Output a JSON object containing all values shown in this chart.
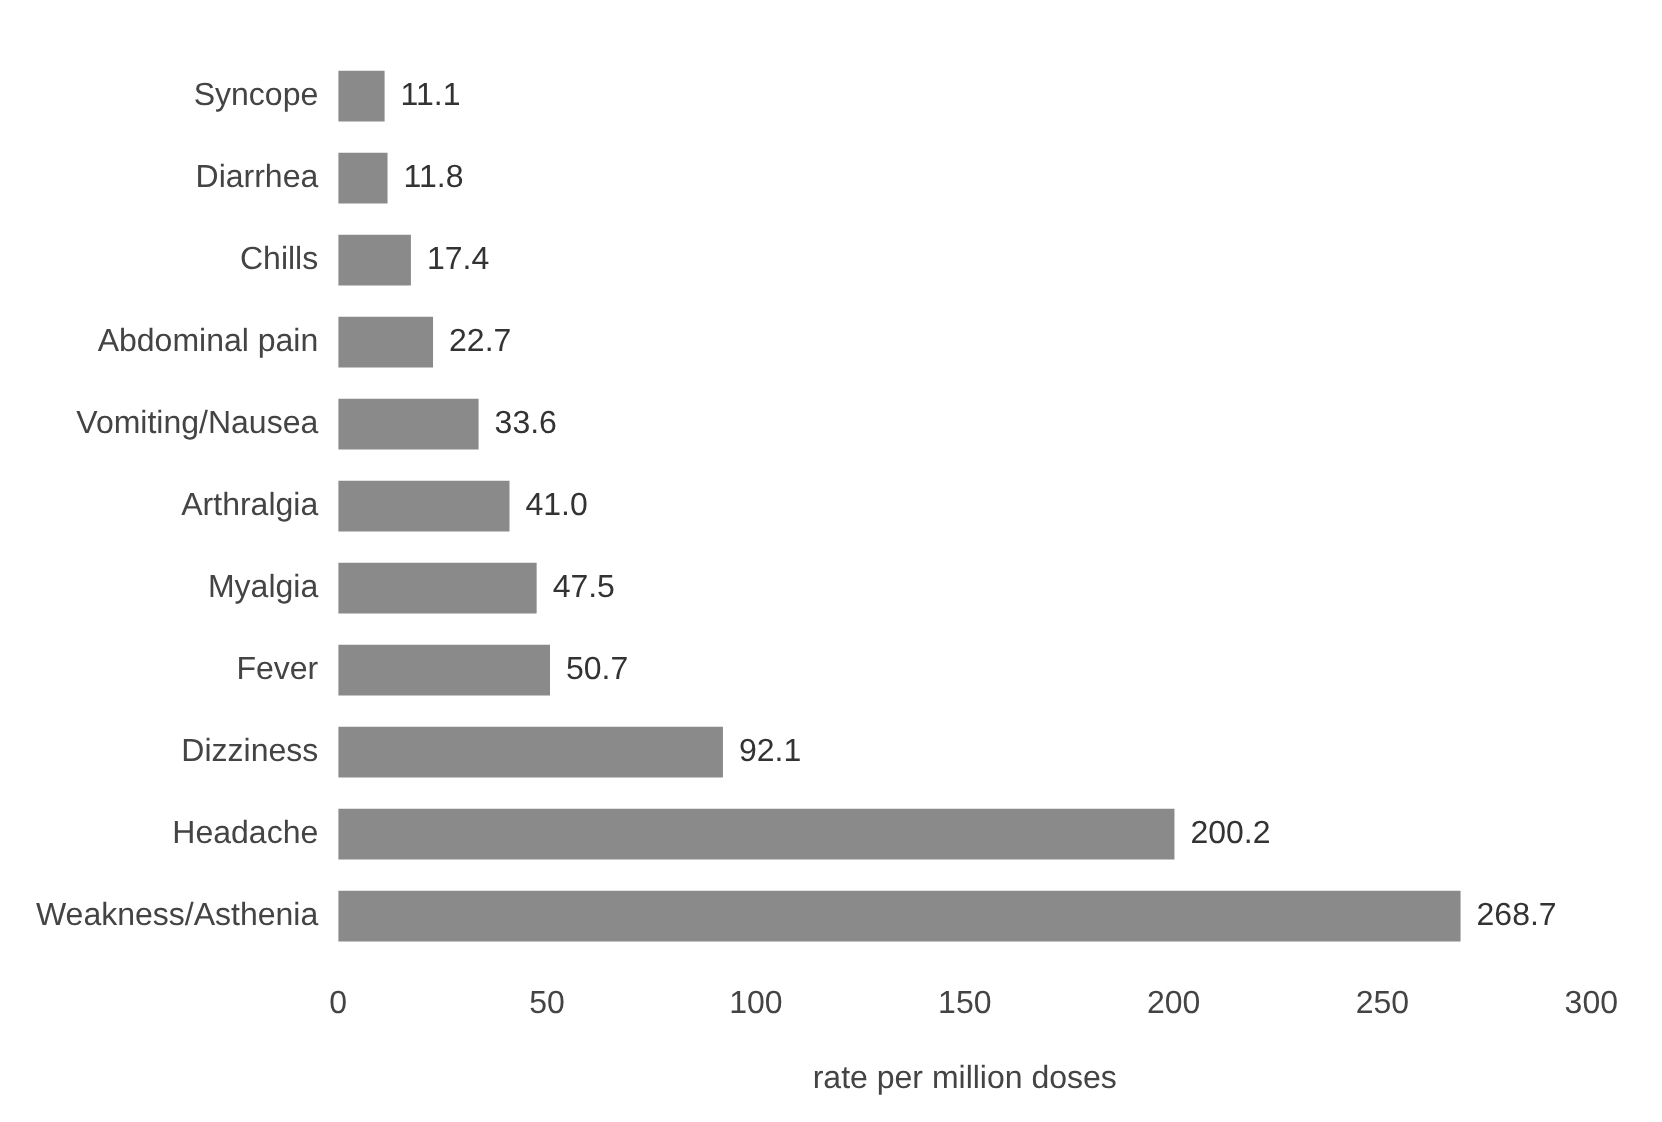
{
  "chart_data": {
    "type": "bar",
    "orientation": "horizontal",
    "xlabel": "rate per million doses",
    "categories": [
      "Syncope",
      "Diarrhea",
      "Chills",
      "Abdominal pain",
      "Vomiting/Nausea",
      "Arthralgia",
      "Myalgia",
      "Fever",
      "Dizziness",
      "Headache",
      "Weakness/Asthenia"
    ],
    "values": [
      11.1,
      11.8,
      17.4,
      22.7,
      33.6,
      41.0,
      47.5,
      50.7,
      92.1,
      200.2,
      268.7
    ],
    "value_labels": [
      "11.1",
      "11.8",
      "17.4",
      "22.7",
      "33.6",
      "41.0",
      "47.5",
      "50.7",
      "92.1",
      "200.2",
      "268.7"
    ],
    "color": "#8a8a8a",
    "xlim": [
      0,
      300
    ],
    "xticks": [
      0,
      50,
      100,
      150,
      200,
      250,
      300
    ],
    "grid": false,
    "legend": false
  }
}
